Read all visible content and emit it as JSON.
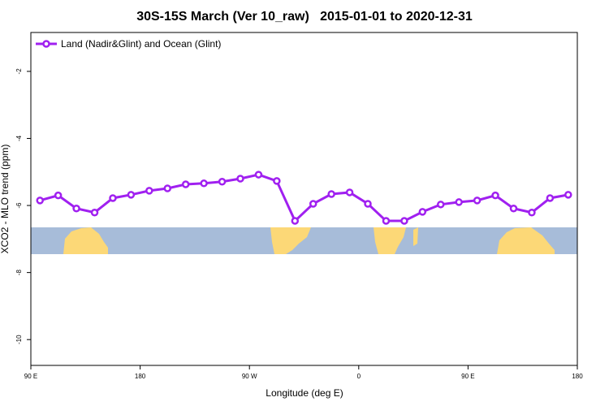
{
  "chart_data": {
    "type": "line",
    "title": "30S-15S March (Ver 10_raw)   2015-01-01 to 2020-12-31",
    "x_label": "Longitude (deg E)",
    "y_label": "XCO2 - MLO trend (ppm)",
    "xlim": [
      90,
      540
    ],
    "xticks": [
      {
        "value": 90,
        "label": "90 E"
      },
      {
        "value": 180,
        "label": "180"
      },
      {
        "value": 270,
        "label": "90 W"
      },
      {
        "value": 360,
        "label": "0"
      },
      {
        "value": 450,
        "label": "90 E"
      },
      {
        "value": 540,
        "label": "180"
      }
    ],
    "ylim": [
      -10.77,
      -0.84
    ],
    "yticks": [
      -10,
      -8,
      -6,
      -4,
      -2
    ],
    "legend_position": "top-left",
    "x": [
      97.5,
      112.5,
      127.5,
      142.5,
      157.5,
      172.5,
      187.5,
      202.5,
      217.5,
      232.5,
      247.5,
      262.5,
      277.5,
      292.5,
      307.5,
      322.5,
      337.5,
      352.5,
      367.5,
      382.5,
      397.5,
      412.5,
      427.5,
      442.5,
      457.5,
      472.5,
      487.5,
      502.5,
      517.5,
      532.5
    ],
    "series": [
      {
        "name": "Land (Nadir&Glint) and Ocean (Glint)",
        "color": "#a020f0",
        "values": [
          -5.85,
          -5.7,
          -6.09,
          -6.21,
          -5.78,
          -5.68,
          -5.56,
          -5.49,
          -5.37,
          -5.34,
          -5.29,
          -5.2,
          -5.08,
          -5.27,
          -6.46,
          -5.95,
          -5.66,
          -5.61,
          -5.95,
          -6.46,
          -6.46,
          -6.19,
          -5.97,
          -5.9,
          -5.85,
          -5.7,
          -6.09,
          -6.21,
          -5.78,
          -5.68
        ]
      }
    ]
  }
}
